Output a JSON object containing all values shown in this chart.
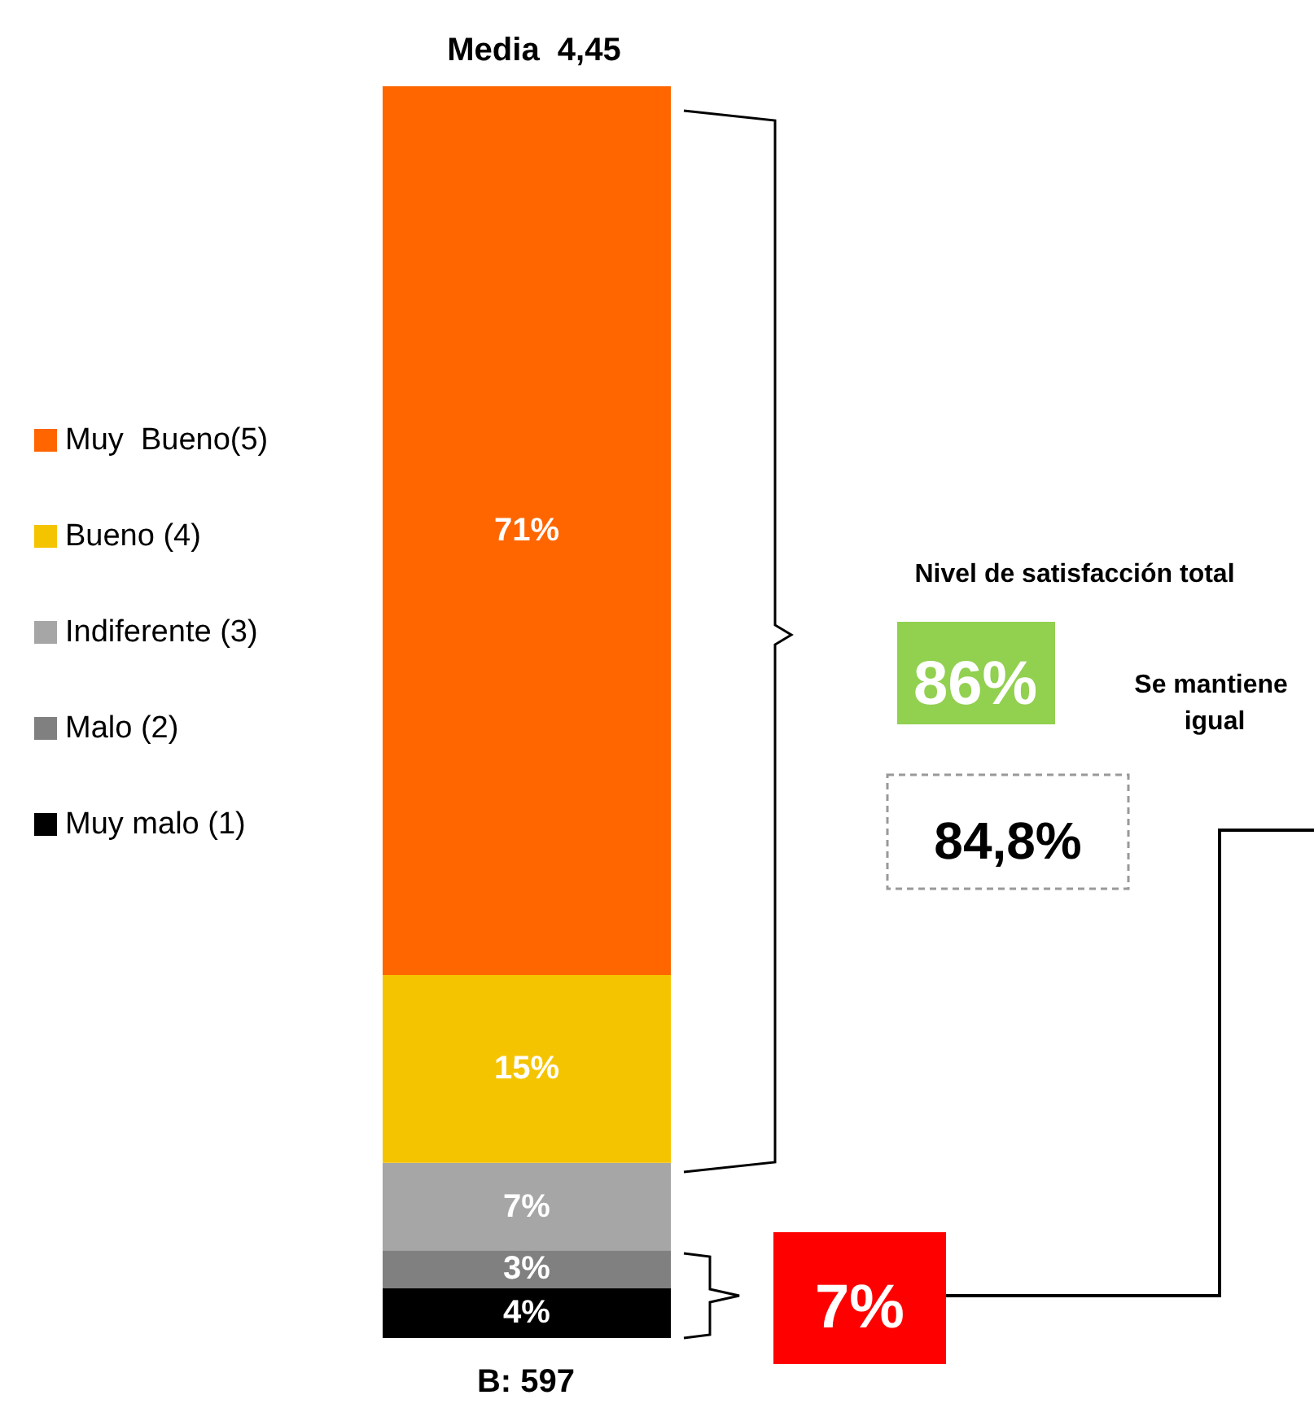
{
  "chart_data": {
    "type": "bar",
    "title": "Media  4,45",
    "categories": [
      null
    ],
    "stacked": true,
    "legend": "left",
    "series": [
      {
        "name": "Muy malo (1)",
        "color": "#000000",
        "values": [
          4
        ],
        "value_labels": [
          "4%"
        ]
      },
      {
        "name": "Malo (2)",
        "color": "#808080",
        "values": [
          3
        ],
        "value_labels": [
          "3%"
        ]
      },
      {
        "name": "Indiferente (3)",
        "color": "#a6a6a6",
        "values": [
          7
        ],
        "value_labels": [
          "7%"
        ]
      },
      {
        "name": "Bueno (4)",
        "color": "#f5c400",
        "values": [
          15
        ],
        "value_labels": [
          "15%"
        ]
      },
      {
        "name": "Muy  Bueno(5)",
        "color": "#ff6600",
        "values": [
          71
        ],
        "value_labels": [
          "71%"
        ]
      }
    ],
    "annotations": [
      "B: 597",
      "Nivel de satisfacción total",
      "86%",
      "Se mantiene igual",
      "84,8%",
      "7%"
    ]
  }
}
